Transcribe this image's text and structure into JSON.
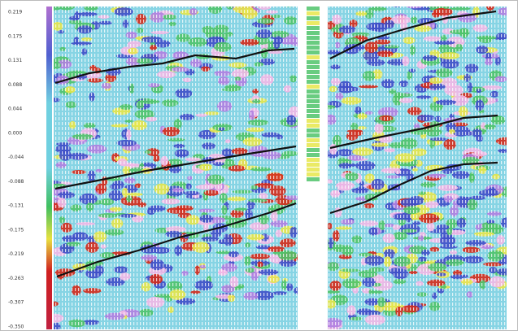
{
  "colorbar": {
    "labels": [
      "0.219",
      "0.175",
      "0.131",
      "0.088",
      "0.044",
      "0.000",
      "-0.044",
      "-0.088",
      "-0.131",
      "-0.175",
      "-0.219",
      "-0.263",
      "-0.307",
      "-0.350"
    ]
  }
}
